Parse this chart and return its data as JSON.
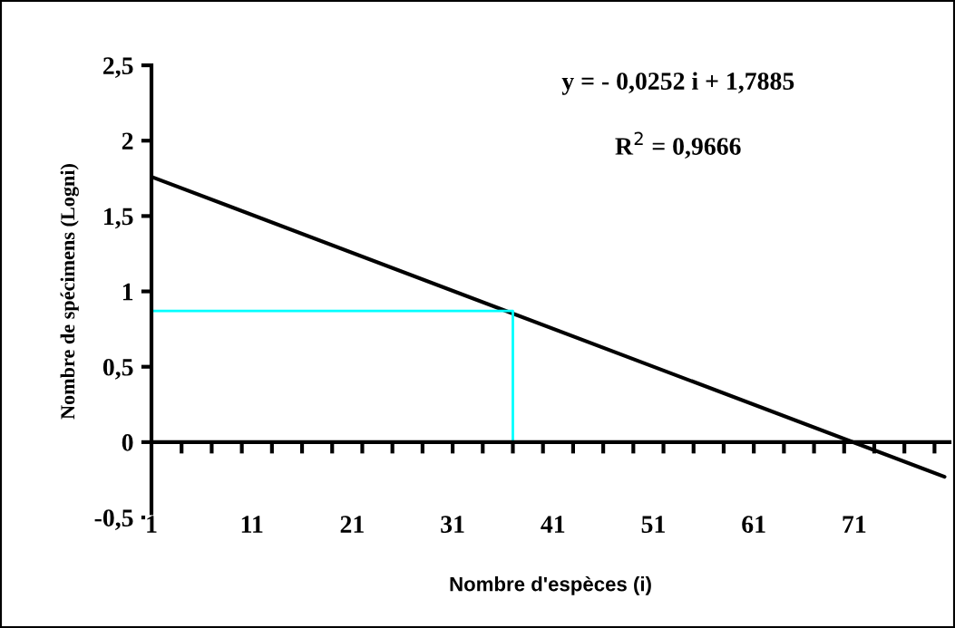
{
  "chart_data": {
    "type": "line",
    "xlabel": "Nombre d'espèces (i)",
    "ylabel": "Nombre de spécimens (Logni)",
    "annotations": [
      "y = - 0,0252 i + 1,7885",
      "R$^{2}$ = 0,9666"
    ],
    "series": [
      {
        "x": [
          1,
          80
        ],
        "values": [
          1.76,
          -0.23
        ],
        "color": "#000000"
      },
      {
        "x": [
          1,
          37,
          37
        ],
        "values": [
          0.87,
          0.87,
          0
        ],
        "color": "#00ffff"
      }
    ],
    "xlim": [
      1,
      80.5
    ],
    "ylim": [
      -0.5,
      2.5
    ],
    "xticks": [
      1,
      11,
      21,
      31,
      41,
      51,
      61,
      71,
      {
        "value": 4,
        "label": null
      },
      {
        "value": 7,
        "label": null
      },
      {
        "value": 10,
        "label": null
      },
      {
        "value": 13,
        "label": null
      },
      {
        "value": 16,
        "label": null
      },
      {
        "value": 19,
        "label": null
      },
      {
        "value": 22,
        "label": null
      },
      {
        "value": 25,
        "label": null
      },
      {
        "value": 28,
        "label": null
      },
      {
        "value": 31,
        "label": null
      },
      {
        "value": 34,
        "label": null
      },
      {
        "value": 37,
        "label": null
      },
      {
        "value": 40,
        "label": null
      },
      {
        "value": 43,
        "label": null
      },
      {
        "value": 46,
        "label": null
      },
      {
        "value": 49,
        "label": null
      },
      {
        "value": 52,
        "label": null
      },
      {
        "value": 55,
        "label": null
      },
      {
        "value": 58,
        "label": null
      },
      {
        "value": 61,
        "label": null
      },
      {
        "value": 64,
        "label": null
      },
      {
        "value": 67,
        "label": null
      },
      {
        "value": 70,
        "label": null
      },
      {
        "value": 73,
        "label": null
      },
      {
        "value": 76,
        "label": null
      },
      {
        "value": 79,
        "label": null
      }
    ],
    "yticks": [
      {
        "value": -0.5,
        "label": "-0,5"
      },
      0,
      {
        "value": 0.5,
        "label": "0,5"
      },
      1,
      {
        "value": 1.5,
        "label": "1,5"
      },
      2,
      {
        "value": 2.5,
        "label": "2,5"
      }
    ],
    "legend": false,
    "marker": "none",
    "line_style": "solid"
  }
}
